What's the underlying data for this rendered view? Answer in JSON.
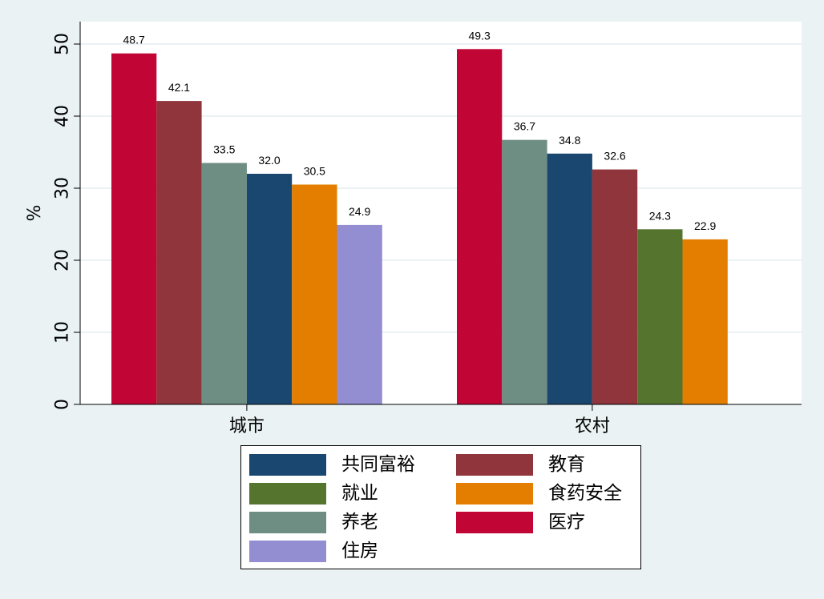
{
  "chart_data": {
    "type": "bar",
    "title": "",
    "xlabel": "",
    "ylabel": "%",
    "ylim": [
      0,
      53
    ],
    "yticks": [
      0,
      10,
      20,
      30,
      40,
      50
    ],
    "grid": true,
    "groups": [
      {
        "label": "城市",
        "bars": [
          {
            "series": "医疗",
            "value": 48.7,
            "label": "48.7"
          },
          {
            "series": "教育",
            "value": 42.1,
            "label": "42.1"
          },
          {
            "series": "养老",
            "value": 33.5,
            "label": "33.5"
          },
          {
            "series": "共同富裕",
            "value": 32.0,
            "label": "32.0"
          },
          {
            "series": "食药安全",
            "value": 30.5,
            "label": "30.5"
          },
          {
            "series": "住房",
            "value": 24.9,
            "label": "24.9"
          }
        ]
      },
      {
        "label": "农村",
        "bars": [
          {
            "series": "医疗",
            "value": 49.3,
            "label": "49.3"
          },
          {
            "series": "养老",
            "value": 36.7,
            "label": "36.7"
          },
          {
            "series": "共同富裕",
            "value": 34.8,
            "label": "34.8"
          },
          {
            "series": "教育",
            "value": 32.6,
            "label": "32.6"
          },
          {
            "series": "就业",
            "value": 24.3,
            "label": "24.3"
          },
          {
            "series": "食药安全",
            "value": 22.9,
            "label": "22.9"
          }
        ]
      }
    ],
    "legend": {
      "placement": "bottom",
      "columns": 2,
      "entries": [
        {
          "name": "共同富裕",
          "color": "#1a476f"
        },
        {
          "name": "教育",
          "color": "#90353b"
        },
        {
          "name": "就业",
          "color": "#55752f"
        },
        {
          "name": "食药安全",
          "color": "#e37e00"
        },
        {
          "name": "养老",
          "color": "#6e8e84"
        },
        {
          "name": "医疗",
          "color": "#c10534"
        },
        {
          "name": "住房",
          "color": "#938dd2"
        }
      ]
    }
  }
}
